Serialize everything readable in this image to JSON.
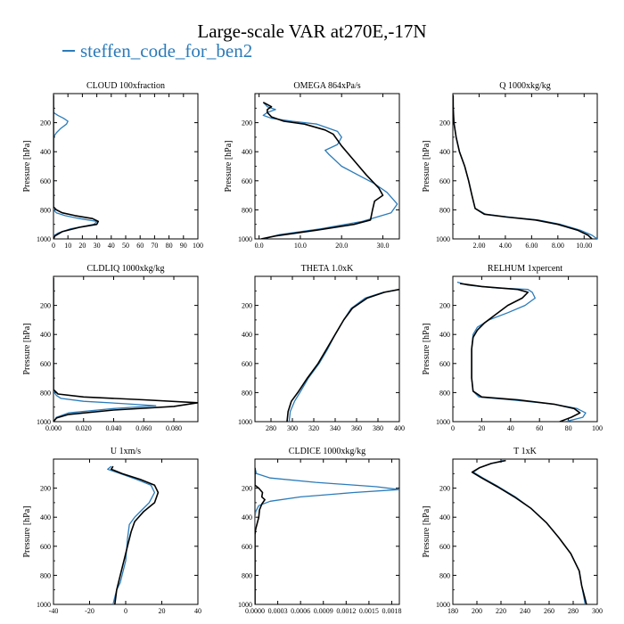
{
  "page": {
    "title": "Large-scale VAR at270E,-17N",
    "legend_label": "steffen_code_for_ben2"
  },
  "colors": {
    "series_a": "#2b7bb9",
    "series_b": "#000000"
  },
  "chart_data": [
    {
      "type": "line",
      "title": "CLOUD  100xfraction",
      "ylabel": "Pressure [hPa]",
      "xlim": [
        0,
        100
      ],
      "ylim": [
        1000,
        0
      ],
      "y_reversed": true,
      "xticks": [
        0,
        10,
        20,
        30,
        40,
        50,
        60,
        70,
        80,
        90,
        100
      ],
      "xticklabels": [
        "0",
        "10",
        "20",
        "30",
        "40",
        "50",
        "60",
        "70",
        "80",
        "90",
        "100"
      ],
      "yticks": [
        200,
        400,
        600,
        800,
        1000
      ],
      "yticklabels": [
        "200",
        "400",
        "600",
        "800",
        "1000"
      ],
      "series": [
        {
          "name": "steffen_code_for_ben2",
          "color": "#2b7bb9",
          "x": [
            0,
            0,
            0,
            0,
            3,
            7,
            10,
            9,
            5,
            2,
            0,
            0,
            0,
            0,
            0,
            2,
            8,
            18,
            30,
            28,
            12,
            3,
            0,
            0
          ],
          "y": [
            10,
            90,
            110,
            130,
            150,
            170,
            190,
            210,
            240,
            270,
            300,
            400,
            600,
            750,
            800,
            820,
            840,
            860,
            880,
            900,
            930,
            960,
            980,
            1000
          ]
        },
        {
          "name": "",
          "color": "#000000",
          "x": [
            0,
            0,
            0,
            0,
            0,
            0,
            0,
            0,
            0,
            0,
            0,
            0,
            2,
            6,
            15,
            27,
            31,
            30,
            18,
            6,
            1,
            0
          ],
          "y": [
            10,
            90,
            110,
            130,
            150,
            170,
            190,
            210,
            240,
            270,
            300,
            780,
            800,
            820,
            840,
            860,
            880,
            900,
            920,
            950,
            980,
            1000
          ]
        }
      ]
    },
    {
      "type": "line",
      "title": "OMEGA  864xPa/s",
      "ylabel": "Pressure [hPa]",
      "xlim": [
        -1,
        34
      ],
      "ylim": [
        1000,
        0
      ],
      "y_reversed": true,
      "xticks": [
        0,
        10,
        20,
        30
      ],
      "xticklabels": [
        "0.0",
        "10.0",
        "20.0",
        "30.0"
      ],
      "yticks": [
        200,
        400,
        600,
        800,
        1000
      ],
      "yticklabels": [
        "200",
        "400",
        "600",
        "800",
        "1000"
      ],
      "series": [
        {
          "name": "steffen_code_for_ben2",
          "color": "#2b7bb9",
          "x": [
            1,
            2,
            4,
            2,
            1,
            3,
            8,
            14,
            19,
            20,
            19,
            16,
            17,
            20,
            24,
            28,
            31,
            33.5,
            32,
            25,
            15,
            5,
            1
          ],
          "y": [
            60,
            90,
            110,
            130,
            150,
            170,
            190,
            210,
            260,
            300,
            350,
            390,
            420,
            500,
            560,
            620,
            680,
            760,
            820,
            880,
            930,
            970,
            1000
          ]
        },
        {
          "name": "",
          "color": "#000000",
          "x": [
            1,
            3,
            2,
            2,
            3,
            6,
            11,
            16,
            18,
            19,
            20,
            23,
            26,
            29,
            30,
            28,
            27.5,
            27,
            23,
            14,
            4,
            0.5
          ],
          "y": [
            60,
            90,
            110,
            130,
            160,
            190,
            210,
            250,
            280,
            320,
            360,
            460,
            560,
            650,
            700,
            740,
            800,
            870,
            900,
            940,
            980,
            1000
          ]
        }
      ]
    },
    {
      "type": "line",
      "title": "Q  1000xkg/kg",
      "ylabel": "Pressure [hPa]",
      "xlim": [
        0,
        11
      ],
      "ylim": [
        1000,
        0
      ],
      "y_reversed": true,
      "xticks": [
        2,
        4,
        6,
        8,
        10
      ],
      "xticklabels": [
        "2.00",
        "4.00",
        "6.00",
        "8.00",
        "10.00"
      ],
      "yticks": [
        200,
        400,
        600,
        800,
        1000
      ],
      "yticklabels": [
        "200",
        "400",
        "600",
        "800",
        "1000"
      ],
      "series": [
        {
          "name": "steffen_code_for_ben2",
          "color": "#2b7bb9",
          "x": [
            0.02,
            0.03,
            0.08,
            0.25,
            0.5,
            0.9,
            1.2,
            1.45,
            1.7,
            2.5,
            4.3,
            6.5,
            8.2,
            9.7,
            10.6,
            11.0
          ],
          "y": [
            10,
            100,
            200,
            300,
            400,
            500,
            600,
            700,
            790,
            830,
            850,
            870,
            900,
            940,
            975,
            1000
          ]
        },
        {
          "name": "",
          "color": "#000000",
          "x": [
            0.02,
            0.03,
            0.08,
            0.25,
            0.5,
            0.9,
            1.2,
            1.45,
            1.7,
            2.4,
            4.1,
            6.3,
            8.0,
            9.5,
            10.3,
            10.6
          ],
          "y": [
            10,
            100,
            200,
            300,
            400,
            500,
            600,
            700,
            790,
            830,
            850,
            870,
            900,
            940,
            975,
            1000
          ]
        }
      ]
    },
    {
      "type": "line",
      "title": "CLDLIQ  1000xkg/kg",
      "ylabel": "Pressure [hPa]",
      "xlim": [
        0,
        0.096
      ],
      "ylim": [
        1000,
        0
      ],
      "y_reversed": true,
      "xticks": [
        0,
        0.02,
        0.04,
        0.06,
        0.08
      ],
      "xticklabels": [
        "0.000",
        "0.020",
        "0.040",
        "0.060",
        "0.080"
      ],
      "yticks": [
        200,
        400,
        600,
        800,
        1000
      ],
      "yticklabels": [
        "200",
        "400",
        "600",
        "800",
        "1000"
      ],
      "series": [
        {
          "name": "steffen_code_for_ben2",
          "color": "#2b7bb9",
          "x": [
            0,
            0,
            0.002,
            0.005,
            0.02,
            0.045,
            0.068,
            0.04,
            0.01,
            0.002,
            0
          ],
          "y": [
            10,
            790,
            820,
            840,
            860,
            875,
            890,
            910,
            940,
            970,
            1000
          ]
        },
        {
          "name": "",
          "color": "#000000",
          "x": [
            0,
            0,
            0.003,
            0.02,
            0.06,
            0.096,
            0.08,
            0.04,
            0.01,
            0.002,
            0
          ],
          "y": [
            10,
            780,
            810,
            830,
            850,
            870,
            895,
            920,
            950,
            975,
            1000
          ]
        }
      ]
    },
    {
      "type": "line",
      "title": "THETA  1.0xK",
      "ylabel": "",
      "xlim": [
        265,
        400
      ],
      "ylim": [
        1000,
        0
      ],
      "y_reversed": true,
      "xticks": [
        280,
        300,
        320,
        340,
        360,
        380,
        400
      ],
      "xticklabels": [
        "280",
        "300",
        "320",
        "340",
        "360",
        "380",
        "400"
      ],
      "yticks": [
        200,
        400,
        600,
        800,
        1000
      ],
      "yticklabels": [
        "200",
        "400",
        "600",
        "800",
        "1000"
      ],
      "series": [
        {
          "name": "steffen_code_for_ben2",
          "color": "#2b7bb9",
          "x": [
            297,
            298,
            302,
            307,
            315,
            325,
            333,
            340,
            348,
            355,
            368,
            385,
            400
          ],
          "y": [
            1000,
            930,
            860,
            800,
            700,
            600,
            500,
            400,
            300,
            220,
            150,
            110,
            90
          ]
        },
        {
          "name": "",
          "color": "#000000",
          "x": [
            295,
            296,
            299,
            305,
            314,
            324,
            332,
            340,
            348,
            356,
            370,
            386,
            400
          ],
          "y": [
            1000,
            930,
            860,
            800,
            700,
            600,
            500,
            400,
            300,
            220,
            150,
            110,
            90
          ]
        }
      ]
    },
    {
      "type": "line",
      "title": "RELHUM  1xpercent",
      "ylabel": "Pressure [hPa]",
      "xlim": [
        0,
        100
      ],
      "ylim": [
        1000,
        0
      ],
      "y_reversed": true,
      "xticks": [
        0,
        20,
        40,
        60,
        80,
        100
      ],
      "xticklabels": [
        "0",
        "20",
        "40",
        "60",
        "80",
        "100"
      ],
      "yticks": [
        200,
        400,
        600,
        800,
        1000
      ],
      "yticklabels": [
        "200",
        "400",
        "600",
        "800",
        "1000"
      ],
      "series": [
        {
          "name": "steffen_code_for_ben2",
          "color": "#2b7bb9",
          "x": [
            3,
            10,
            30,
            52,
            55,
            57,
            50,
            38,
            25,
            17,
            14,
            13,
            13,
            13,
            14,
            18,
            40,
            70,
            86,
            92,
            90,
            78
          ],
          "y": [
            40,
            60,
            80,
            90,
            110,
            150,
            200,
            250,
            300,
            350,
            400,
            500,
            600,
            700,
            790,
            830,
            850,
            880,
            910,
            940,
            970,
            1000
          ]
        },
        {
          "name": "",
          "color": "#000000",
          "x": [
            5,
            20,
            45,
            52,
            48,
            38,
            30,
            22,
            17,
            14,
            13,
            13,
            13,
            14,
            20,
            45,
            70,
            84,
            88,
            82,
            74
          ],
          "y": [
            50,
            70,
            90,
            110,
            150,
            200,
            260,
            320,
            370,
            420,
            500,
            600,
            700,
            790,
            830,
            850,
            880,
            910,
            940,
            970,
            1000
          ]
        }
      ]
    },
    {
      "type": "line",
      "title": "U  1xm/s",
      "ylabel": "Pressure [hPa]",
      "xlim": [
        -40,
        40
      ],
      "ylim": [
        1000,
        0
      ],
      "y_reversed": true,
      "xticks": [
        -40,
        -20,
        0,
        20,
        40
      ],
      "xticklabels": [
        "-40",
        "-20",
        "0",
        "20",
        "40"
      ],
      "yticks": [
        200,
        400,
        600,
        800,
        1000
      ],
      "yticklabels": [
        "200",
        "400",
        "600",
        "800",
        "1000"
      ],
      "series": [
        {
          "name": "steffen_code_for_ben2",
          "color": "#2b7bb9",
          "x": [
            -8,
            -10,
            -3,
            6,
            14,
            16,
            13,
            9,
            5,
            2,
            1,
            0,
            -3,
            -5,
            -6,
            -7
          ],
          "y": [
            50,
            70,
            100,
            140,
            180,
            230,
            300,
            350,
            400,
            450,
            550,
            700,
            850,
            900,
            950,
            1000
          ]
        },
        {
          "name": "",
          "color": "#000000",
          "x": [
            -7,
            -8,
            -2,
            8,
            16,
            18,
            16,
            10,
            5,
            3,
            1,
            -1,
            -3,
            -5,
            -6
          ],
          "y": [
            50,
            70,
            100,
            140,
            180,
            230,
            300,
            360,
            430,
            500,
            600,
            700,
            800,
            900,
            1000
          ]
        }
      ]
    },
    {
      "type": "line",
      "title": "CLDICE  1000xkg/kg",
      "ylabel": "",
      "xlim": [
        0,
        0.0019
      ],
      "ylim": [
        1000,
        0
      ],
      "y_reversed": true,
      "xticks": [
        0,
        0.0003,
        0.0006,
        0.0009,
        0.0012,
        0.0015,
        0.0018
      ],
      "xticklabels": [
        "0.0000",
        "0.0003",
        "0.0006",
        "0.0009",
        "0.0012",
        "0.0015",
        "0.0018"
      ],
      "yticks": [
        200,
        400,
        600,
        800,
        1000
      ],
      "yticklabels": [
        "200",
        "400",
        "600",
        "800",
        "1000"
      ],
      "series": [
        {
          "name": "steffen_code_for_ben2",
          "color": "#2b7bb9",
          "x": [
            0,
            2e-05,
            0.0002,
            0.0008,
            0.0016,
            0.0019,
            0.0013,
            0.0006,
            0.0002,
            5e-05,
            1e-05,
            0,
            0
          ],
          "y": [
            60,
            100,
            130,
            160,
            190,
            210,
            230,
            260,
            290,
            320,
            360,
            400,
            1000
          ]
        },
        {
          "name": "",
          "color": "#000000",
          "x": [
            0,
            0,
            5e-05,
            0.0001,
            9e-05,
            0.00013,
            9e-05,
            6e-05,
            5e-05,
            3e-05,
            1e-05,
            0,
            0
          ],
          "y": [
            60,
            180,
            200,
            230,
            260,
            280,
            310,
            350,
            400,
            440,
            480,
            520,
            1000
          ]
        }
      ]
    },
    {
      "type": "line",
      "title": "T  1xK",
      "ylabel": "Pressure [hPa]",
      "xlim": [
        180,
        300
      ],
      "ylim": [
        1000,
        0
      ],
      "y_reversed": true,
      "xticks": [
        180,
        200,
        220,
        240,
        260,
        280,
        300
      ],
      "xticklabels": [
        "180",
        "200",
        "220",
        "240",
        "260",
        "280",
        "300"
      ],
      "yticks": [
        200,
        400,
        600,
        800,
        1000
      ],
      "yticklabels": [
        "200",
        "400",
        "600",
        "800",
        "1000"
      ],
      "series": [
        {
          "name": "steffen_code_for_ben2",
          "color": "#2b7bb9",
          "x": [
            222,
            212,
            202,
            197,
            205,
            218,
            232,
            245,
            258,
            268,
            278,
            285,
            287,
            290
          ],
          "y": [
            10,
            30,
            60,
            90,
            130,
            190,
            260,
            340,
            440,
            540,
            650,
            770,
            870,
            1000
          ]
        },
        {
          "name": "",
          "color": "#000000",
          "x": [
            224,
            212,
            202,
            196,
            204,
            217,
            231,
            245,
            258,
            268,
            278,
            285,
            287,
            291
          ],
          "y": [
            10,
            30,
            60,
            90,
            130,
            190,
            260,
            340,
            440,
            540,
            650,
            770,
            870,
            1000
          ]
        }
      ]
    }
  ]
}
